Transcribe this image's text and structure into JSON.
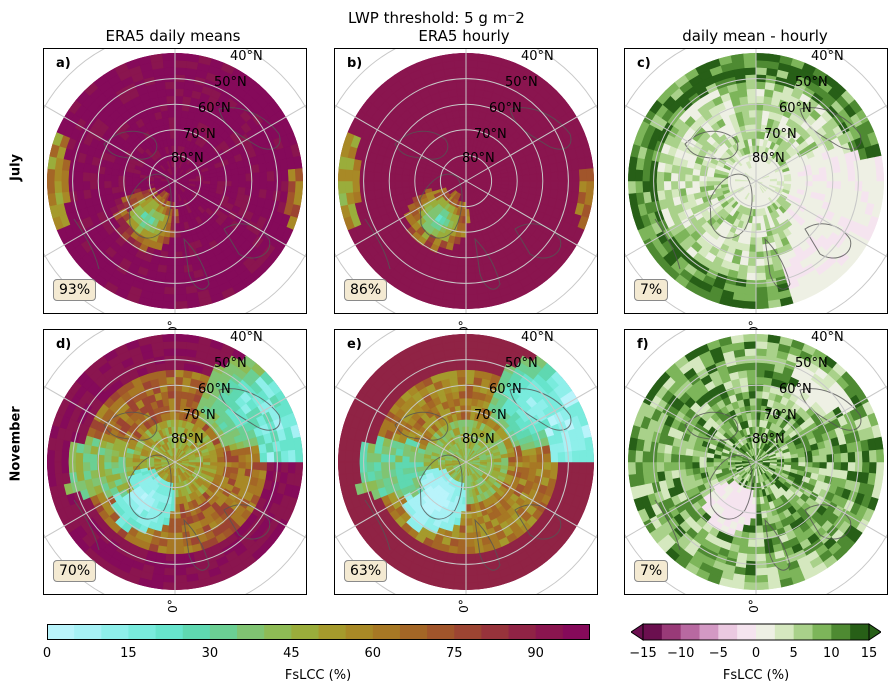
{
  "figure": {
    "title": "LWP threshold: 5 g m⁻2",
    "columns": [
      "ERA5 daily means",
      "ERA5 hourly",
      "daily mean - hourly"
    ],
    "rows": [
      "July",
      "November"
    ],
    "lat_labels": [
      "40°N",
      "50°N",
      "60°N",
      "70°N",
      "80°N"
    ],
    "meridian_label": "0°"
  },
  "panels": [
    {
      "label": "a)",
      "pct": "93%",
      "kind": "abs",
      "month": "July"
    },
    {
      "label": "b)",
      "pct": "86%",
      "kind": "abs",
      "month": "July"
    },
    {
      "label": "c)",
      "pct": "7%",
      "kind": "diff",
      "month": "July"
    },
    {
      "label": "d)",
      "pct": "70%",
      "kind": "abs",
      "month": "November"
    },
    {
      "label": "e)",
      "pct": "63%",
      "kind": "abs",
      "month": "November"
    },
    {
      "label": "f)",
      "pct": "7%",
      "kind": "diff",
      "month": "November"
    }
  ],
  "colorbars": {
    "left": {
      "label": "FsLCC (%)",
      "ticks": [
        "0",
        "15",
        "30",
        "45",
        "60",
        "75",
        "90"
      ],
      "range": [
        0,
        100
      ],
      "colors": [
        "#b9f4fb",
        "#a6f1f5",
        "#8eefea",
        "#79ebdd",
        "#67e4cc",
        "#5fd8b1",
        "#6bcf93",
        "#80c472",
        "#8ebb55",
        "#9aad3b",
        "#a59a2c",
        "#a88926",
        "#a77824",
        "#a46626",
        "#a1552b",
        "#9c4432",
        "#97333b",
        "#902345",
        "#8a154f",
        "#850a5a"
      ]
    },
    "right": {
      "label": "FsLCC (%)",
      "ticks": [
        "−15",
        "−10",
        "−5",
        "0",
        "5",
        "10",
        "15"
      ],
      "range": [
        -15,
        15
      ],
      "colors": [
        "#6b0f4f",
        "#993a78",
        "#b869a1",
        "#d399c4",
        "#ebc9e1",
        "#f5e4ef",
        "#eef0e4",
        "#d5e8bf",
        "#a9d18a",
        "#7db55a",
        "#4e8a32",
        "#275f17"
      ]
    }
  }
}
